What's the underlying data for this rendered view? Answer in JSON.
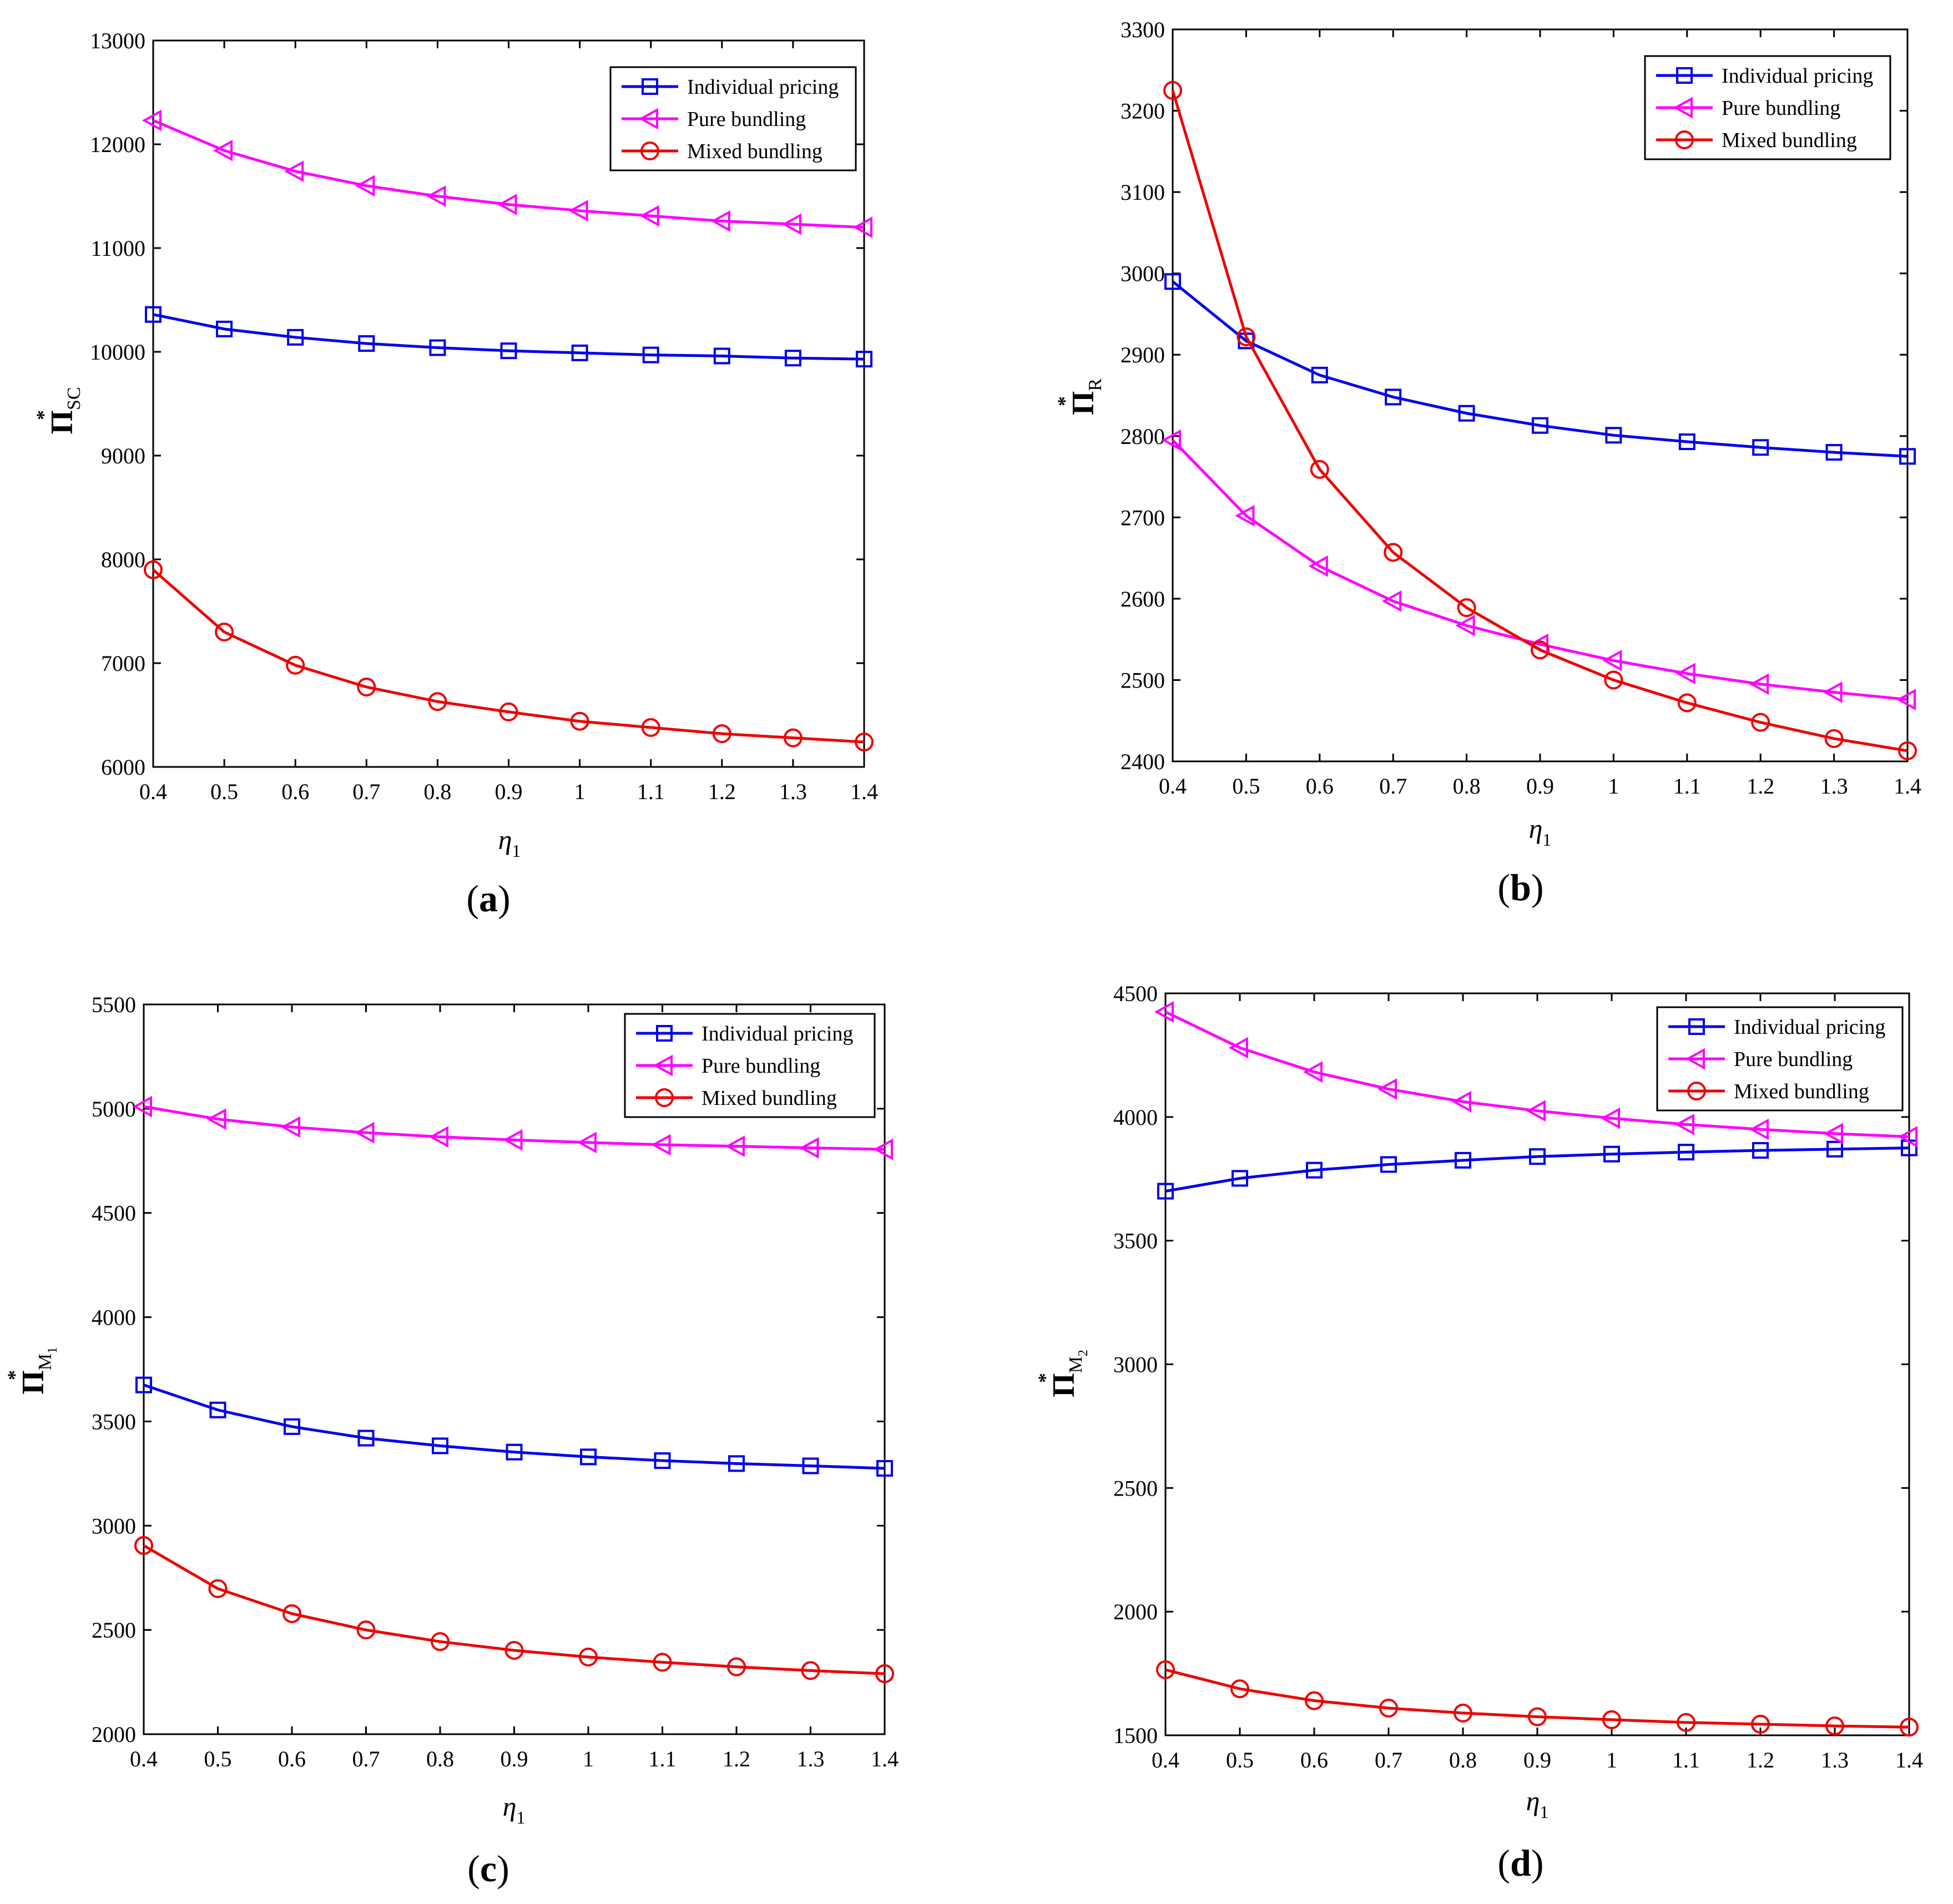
{
  "figure": {
    "legend_labels": [
      "Individual pricing",
      "Pure bundling",
      "Mixed bundling"
    ],
    "colors": {
      "individual": "#0000ee",
      "pure": "#ff00ff",
      "mixed": "#ee0000"
    },
    "markers": {
      "individual": "square",
      "pure": "triangle-left",
      "mixed": "circle"
    }
  },
  "chart_data": [
    {
      "panel": "a",
      "type": "line",
      "title": "",
      "xlabel_main": "η",
      "xlabel_sub": "1",
      "ylabel_main": "Π",
      "ylabel_sup": "*",
      "ylabel_sub": "SC",
      "xlim": [
        0.4,
        1.4
      ],
      "ylim": [
        6000,
        13000
      ],
      "xticks": [
        0.4,
        0.5,
        0.6,
        0.7,
        0.8,
        0.9,
        1,
        1.1,
        1.2,
        1.3,
        1.4
      ],
      "xtick_labels": [
        "0.4",
        "0.5",
        "0.6",
        "0.7",
        "0.8",
        "0.9",
        "1",
        "1.1",
        "1.2",
        "1.3",
        "1.4"
      ],
      "yticks": [
        6000,
        7000,
        8000,
        9000,
        10000,
        11000,
        12000,
        13000
      ],
      "ytick_labels": [
        "6000",
        "7000",
        "8000",
        "9000",
        "10000",
        "11000",
        "12000",
        "13000"
      ],
      "x": [
        0.4,
        0.5,
        0.6,
        0.7,
        0.8,
        0.9,
        1.0,
        1.1,
        1.2,
        1.3,
        1.4
      ],
      "series": [
        {
          "name": "Individual pricing",
          "values": [
            10360,
            10220,
            10140,
            10080,
            10040,
            10010,
            9990,
            9970,
            9960,
            9940,
            9930
          ]
        },
        {
          "name": "Pure bundling",
          "values": [
            12230,
            11940,
            11740,
            11600,
            11500,
            11420,
            11360,
            11310,
            11260,
            11230,
            11200
          ]
        },
        {
          "name": "Mixed bundling",
          "values": [
            7900,
            7300,
            6980,
            6770,
            6630,
            6530,
            6440,
            6380,
            6320,
            6280,
            6240
          ]
        }
      ],
      "legend_position": "top-right"
    },
    {
      "panel": "b",
      "type": "line",
      "title": "",
      "xlabel_main": "η",
      "xlabel_sub": "1",
      "ylabel_main": "Π",
      "ylabel_sup": "*",
      "ylabel_sub": "R",
      "xlim": [
        0.4,
        1.4
      ],
      "ylim": [
        2400,
        3300
      ],
      "xticks": [
        0.4,
        0.5,
        0.6,
        0.7,
        0.8,
        0.9,
        1,
        1.1,
        1.2,
        1.3,
        1.4
      ],
      "xtick_labels": [
        "0.4",
        "0.5",
        "0.6",
        "0.7",
        "0.8",
        "0.9",
        "1",
        "1.1",
        "1.2",
        "1.3",
        "1.4"
      ],
      "yticks": [
        2400,
        2500,
        2600,
        2700,
        2800,
        2900,
        3000,
        3100,
        3200,
        3300
      ],
      "ytick_labels": [
        "2400",
        "2500",
        "2600",
        "2700",
        "2800",
        "2900",
        "3000",
        "3100",
        "3200",
        "3300"
      ],
      "x": [
        0.4,
        0.5,
        0.6,
        0.7,
        0.8,
        0.9,
        1.0,
        1.1,
        1.2,
        1.3,
        1.4
      ],
      "series": [
        {
          "name": "Individual pricing",
          "values": [
            2990,
            2917,
            2875,
            2848,
            2828,
            2813,
            2801,
            2793,
            2786,
            2780,
            2775
          ]
        },
        {
          "name": "Pure bundling",
          "values": [
            2795,
            2702,
            2640,
            2597,
            2567,
            2544,
            2524,
            2508,
            2495,
            2485,
            2476
          ]
        },
        {
          "name": "Mixed bundling",
          "values": [
            3225,
            2922,
            2759,
            2657,
            2589,
            2537,
            2500,
            2472,
            2448,
            2428,
            2413
          ]
        }
      ],
      "legend_position": "top-right"
    },
    {
      "panel": "c",
      "type": "line",
      "title": "",
      "xlabel_main": "η",
      "xlabel_sub": "1",
      "ylabel_main": "Π",
      "ylabel_sup": "*",
      "ylabel_sub": "M",
      "ylabel_subsub": "1",
      "xlim": [
        0.4,
        1.4
      ],
      "ylim": [
        2000,
        5500
      ],
      "xticks": [
        0.4,
        0.5,
        0.6,
        0.7,
        0.8,
        0.9,
        1,
        1.1,
        1.2,
        1.3,
        1.4
      ],
      "xtick_labels": [
        "0.4",
        "0.5",
        "0.6",
        "0.7",
        "0.8",
        "0.9",
        "1",
        "1.1",
        "1.2",
        "1.3",
        "1.4"
      ],
      "yticks": [
        2000,
        2500,
        3000,
        3500,
        4000,
        4500,
        5000,
        5500
      ],
      "ytick_labels": [
        "2000",
        "2500",
        "3000",
        "3500",
        "4000",
        "4500",
        "5000",
        "5500"
      ],
      "x": [
        0.4,
        0.5,
        0.6,
        0.7,
        0.8,
        0.9,
        1.0,
        1.1,
        1.2,
        1.3,
        1.4
      ],
      "series": [
        {
          "name": "Individual pricing",
          "values": [
            3675,
            3555,
            3475,
            3420,
            3383,
            3353,
            3330,
            3312,
            3298,
            3287,
            3275
          ]
        },
        {
          "name": "Pure bundling",
          "values": [
            5010,
            4950,
            4912,
            4885,
            4865,
            4850,
            4838,
            4827,
            4820,
            4812,
            4805
          ]
        },
        {
          "name": "Mixed bundling",
          "values": [
            2905,
            2698,
            2578,
            2500,
            2444,
            2402,
            2370,
            2345,
            2323,
            2305,
            2290
          ]
        }
      ],
      "legend_position": "top-right"
    },
    {
      "panel": "d",
      "type": "line",
      "title": "",
      "xlabel_main": "η",
      "xlabel_sub": "1",
      "ylabel_main": "Π",
      "ylabel_sup": "*",
      "ylabel_sub": "M",
      "ylabel_subsub": "2",
      "xlim": [
        0.4,
        1.4
      ],
      "ylim": [
        1500,
        4500
      ],
      "xticks": [
        0.4,
        0.5,
        0.6,
        0.7,
        0.8,
        0.9,
        1,
        1.1,
        1.2,
        1.3,
        1.4
      ],
      "xtick_labels": [
        "0.4",
        "0.5",
        "0.6",
        "0.7",
        "0.8",
        "0.9",
        "1",
        "1.1",
        "1.2",
        "1.3",
        "1.4"
      ],
      "yticks": [
        1500,
        2000,
        2500,
        3000,
        3500,
        4000,
        4500
      ],
      "ytick_labels": [
        "1500",
        "2000",
        "2500",
        "3000",
        "3500",
        "4000",
        "4500"
      ],
      "x": [
        0.4,
        0.5,
        0.6,
        0.7,
        0.8,
        0.9,
        1.0,
        1.1,
        1.2,
        1.3,
        1.4
      ],
      "series": [
        {
          "name": "Individual pricing",
          "values": [
            3700,
            3752,
            3785,
            3808,
            3825,
            3840,
            3850,
            3858,
            3865,
            3870,
            3875
          ]
        },
        {
          "name": "Pure bundling",
          "values": [
            4425,
            4280,
            4182,
            4113,
            4062,
            4025,
            3995,
            3970,
            3950,
            3933,
            3920
          ]
        },
        {
          "name": "Mixed bundling",
          "values": [
            1765,
            1688,
            1640,
            1610,
            1590,
            1575,
            1563,
            1552,
            1545,
            1538,
            1533
          ]
        }
      ],
      "legend_position": "top-right"
    }
  ]
}
